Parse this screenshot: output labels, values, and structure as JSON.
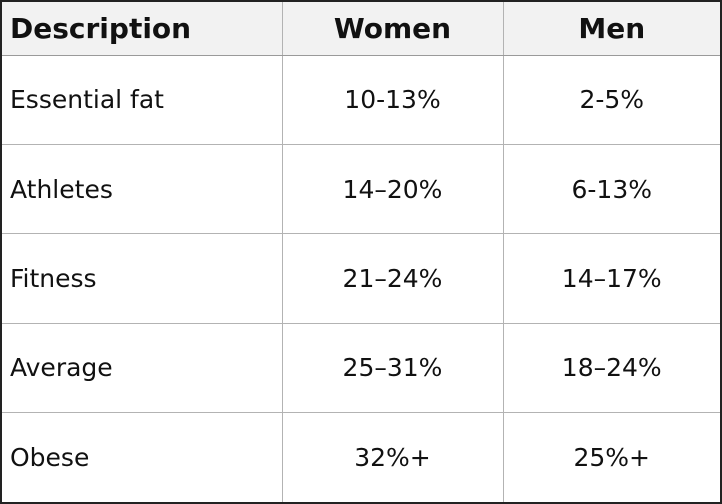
{
  "table": {
    "headers": [
      "Description",
      "Women",
      "Men"
    ],
    "rows": [
      [
        "Essential fat",
        "10-13%",
        "2-5%"
      ],
      [
        "Athletes",
        "14–20%",
        "6-13%"
      ],
      [
        "Fitness",
        "21–24%",
        "14–17%"
      ],
      [
        "Average",
        "25–31%",
        "18–24%"
      ],
      [
        "Obese",
        "32%+",
        "25%+"
      ]
    ]
  }
}
